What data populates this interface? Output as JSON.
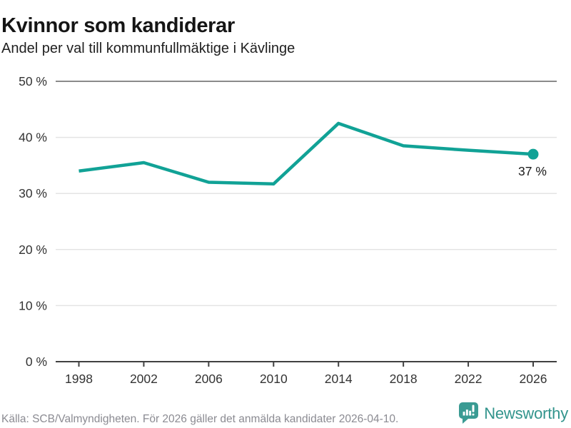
{
  "header": {
    "title": "Kvinnor som kandiderar",
    "subtitle": "Andel per val till kommunfullmäktige i Kävlinge"
  },
  "chart_data": {
    "type": "line",
    "title": "Kvinnor som kandiderar",
    "subtitle": "Andel per val till kommunfullmäktige i Kävlinge",
    "categories": [
      "1998",
      "2002",
      "2006",
      "2010",
      "2014",
      "2018",
      "2022",
      "2026"
    ],
    "values": [
      34,
      35.5,
      32,
      31.7,
      42.5,
      38.5,
      37.7,
      37
    ],
    "ylim": [
      0,
      50
    ],
    "yticks": [
      0,
      10,
      20,
      30,
      40,
      50
    ],
    "ytick_suffix": " %",
    "grid": true,
    "legend": "none",
    "end_label": "37 %",
    "colors": {
      "line": "#11a296",
      "end_dot": "#11a296",
      "grid_light": "#e4e4e4",
      "grid_top": "#8a8a8a",
      "axis": "#404040",
      "tick_text": "#333333",
      "annotation_text": "#1a1a1a"
    }
  },
  "footer": {
    "source": "Källa: SCB/Valmyndigheten. För 2026 gäller det anmälda kandidater 2026-04-10.",
    "brand": "Newsworthy",
    "brand_color": "#32948c",
    "logo_color": "#3a9b93"
  }
}
